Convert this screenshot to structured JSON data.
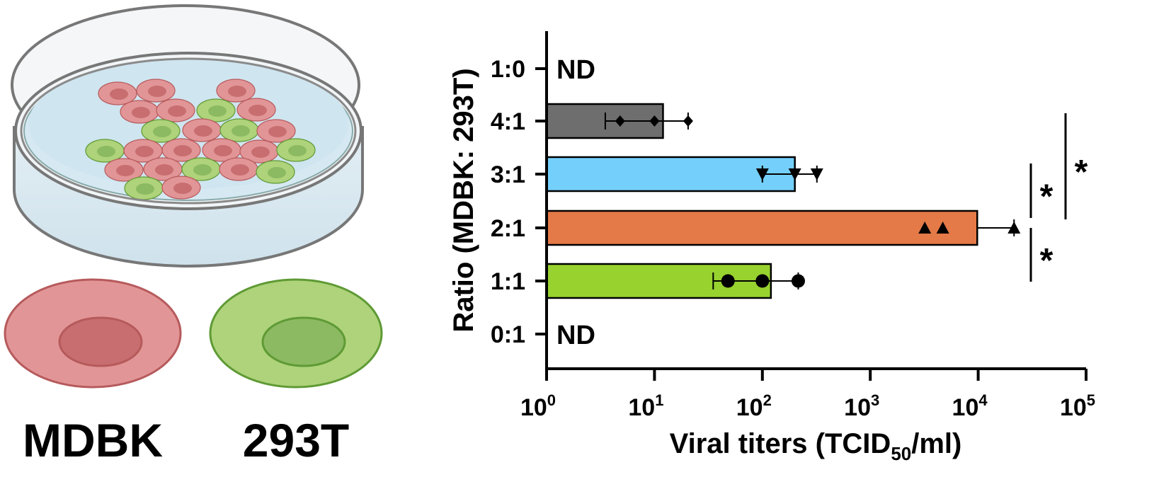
{
  "illustration": {
    "dish": "petri-dish",
    "legend": [
      {
        "label": "MDBK",
        "color": "#e29596",
        "nucleus": "#c86e70",
        "outline": "#b65a5c"
      },
      {
        "label": "293T",
        "color": "#aed37a",
        "nucleus": "#8cba62",
        "outline": "#5f9a35"
      }
    ]
  },
  "chart_data": {
    "type": "bar",
    "orientation": "horizontal",
    "xscale": "log",
    "xlim": [
      1,
      100000
    ],
    "xticks": [
      {
        "base": "10",
        "exp": "0"
      },
      {
        "base": "10",
        "exp": "1"
      },
      {
        "base": "10",
        "exp": "2"
      },
      {
        "base": "10",
        "exp": "3"
      },
      {
        "base": "10",
        "exp": "4"
      },
      {
        "base": "10",
        "exp": "5"
      }
    ],
    "xlabel": {
      "main": "Viral titers (TCID",
      "sub": "50",
      "tail": "/ml)"
    },
    "ylabel": "Ratio (MDBK: 293T)",
    "categories": [
      {
        "label": "1:0",
        "value": null,
        "note": "ND",
        "color": null,
        "marker": null,
        "points": [],
        "error": null
      },
      {
        "label": "4:1",
        "value": 12,
        "note": "",
        "color": "#6e6e6e",
        "marker": "diamond",
        "points": [
          4.8,
          10,
          20.5
        ],
        "error": [
          3.5,
          20.5
        ]
      },
      {
        "label": "3:1",
        "value": 200,
        "note": "",
        "color": "#74d0fb",
        "marker": "triangle-down",
        "points": [
          100,
          200,
          320
        ],
        "error": [
          100,
          320
        ]
      },
      {
        "label": "2:1",
        "value": 9800,
        "note": "",
        "color": "#e47a47",
        "marker": "triangle-up",
        "points": [
          3200,
          4700,
          21500
        ],
        "error": [
          9800,
          21500
        ]
      },
      {
        "label": "1:1",
        "value": 120,
        "note": "",
        "color": "#97d22f",
        "marker": "circle",
        "points": [
          48,
          100,
          215
        ],
        "error": [
          35,
          215
        ]
      },
      {
        "label": "0:1",
        "value": null,
        "note": "ND",
        "color": null,
        "marker": null,
        "points": [],
        "error": null
      }
    ],
    "significance": [
      {
        "from": "3:1",
        "to": "2:1",
        "label": "*"
      },
      {
        "from": "2:1",
        "to": "1:1",
        "label": "*"
      },
      {
        "from": "4:1",
        "to": "2:1",
        "label": "*"
      }
    ],
    "grid": false,
    "legend": "none"
  }
}
